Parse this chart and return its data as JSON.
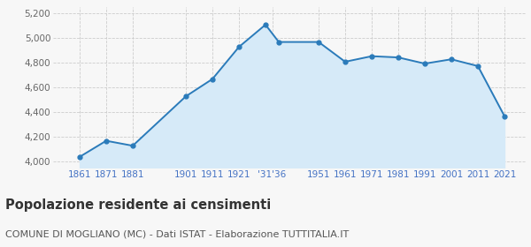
{
  "years": [
    1861,
    1871,
    1881,
    1901,
    1911,
    1921,
    1931,
    1936,
    1951,
    1961,
    1971,
    1981,
    1991,
    2001,
    2011,
    2021
  ],
  "population": [
    4040,
    4170,
    4130,
    4530,
    4670,
    4930,
    5110,
    4970,
    4970,
    4810,
    4855,
    4845,
    4795,
    4830,
    4775,
    4370
  ],
  "x_tick_positions": [
    1861,
    1871,
    1881,
    1901,
    1911,
    1921,
    1933.5,
    1951,
    1961,
    1971,
    1981,
    1991,
    2001,
    2011,
    2021
  ],
  "x_tick_labels": [
    "1861",
    "1871",
    "1881",
    "1901",
    "1911",
    "1921",
    "'31'36",
    "1951",
    "1961",
    "1971",
    "1981",
    "1991",
    "2001",
    "2011",
    "2021"
  ],
  "line_color": "#2b7bba",
  "fill_color": "#d6eaf8",
  "marker_color": "#2b7bba",
  "bg_color": "#f7f7f7",
  "grid_color": "#cccccc",
  "ylim": [
    3950,
    5250
  ],
  "yticks": [
    4000,
    4200,
    4400,
    4600,
    4800,
    5000,
    5200
  ],
  "xlim_left": 1851,
  "xlim_right": 2029,
  "title": "Popolazione residente ai censimenti",
  "subtitle": "COMUNE DI MOGLIANO (MC) - Dati ISTAT - Elaborazione TUTTITALIA.IT",
  "title_fontsize": 10.5,
  "subtitle_fontsize": 8,
  "tick_label_color": "#4472c4",
  "ytick_label_color": "#666666"
}
